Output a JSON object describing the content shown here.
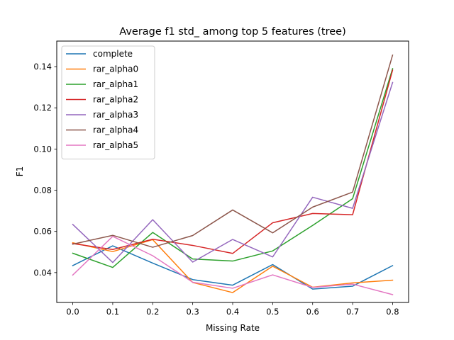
{
  "chart_data": {
    "type": "line",
    "title": "Average f1 std_ among top 5 features (tree)",
    "xlabel": "Missing Rate",
    "ylabel": "F1",
    "x": [
      0.0,
      0.1,
      0.2,
      0.3,
      0.4,
      0.5,
      0.6,
      0.7,
      0.8
    ],
    "x_ticks": [
      "0.0",
      "0.1",
      "0.2",
      "0.3",
      "0.4",
      "0.5",
      "0.6",
      "0.7",
      "0.8"
    ],
    "y_ticks": [
      "0.04",
      "0.06",
      "0.08",
      "0.10",
      "0.12",
      "0.14"
    ],
    "xlim": [
      -0.04,
      0.84
    ],
    "ylim": [
      0.0255,
      0.1524
    ],
    "grid": false,
    "legend_position": "upper-left",
    "series": [
      {
        "name": "complete",
        "color": "#1f77b4",
        "values": [
          0.0434,
          0.053,
          0.0446,
          0.0366,
          0.0339,
          0.0439,
          0.032,
          0.0334,
          0.0434
        ]
      },
      {
        "name": "rar_alpha0",
        "color": "#ff7f0e",
        "values": [
          0.0545,
          0.0502,
          0.056,
          0.0352,
          0.0303,
          0.0431,
          0.0329,
          0.035,
          0.0363
        ]
      },
      {
        "name": "rar_alpha1",
        "color": "#2ca02c",
        "values": [
          0.0494,
          0.0425,
          0.0595,
          0.0466,
          0.0456,
          0.0505,
          0.0629,
          0.0759,
          0.139
        ]
      },
      {
        "name": "rar_alpha2",
        "color": "#d62728",
        "values": [
          0.0541,
          0.0512,
          0.0562,
          0.0532,
          0.0493,
          0.0642,
          0.0687,
          0.0681,
          0.1383
        ]
      },
      {
        "name": "rar_alpha3",
        "color": "#9467bd",
        "values": [
          0.0634,
          0.0449,
          0.0657,
          0.0451,
          0.0561,
          0.0476,
          0.0766,
          0.0712,
          0.1323
        ]
      },
      {
        "name": "rar_alpha4",
        "color": "#8c564b",
        "values": [
          0.0538,
          0.0581,
          0.0523,
          0.058,
          0.0704,
          0.0593,
          0.0718,
          0.0791,
          0.1456
        ]
      },
      {
        "name": "rar_alpha5",
        "color": "#e377c2",
        "values": [
          0.0388,
          0.0576,
          0.0482,
          0.0353,
          0.0324,
          0.0389,
          0.0328,
          0.0344,
          0.0293
        ]
      }
    ]
  }
}
